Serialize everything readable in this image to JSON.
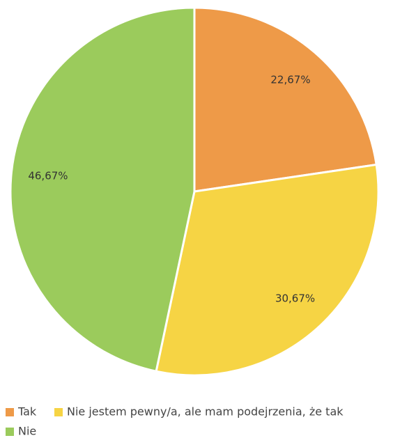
{
  "chart_data": {
    "type": "pie",
    "categories": [
      "Tak",
      "Nie jestem pewny/a, ale mam podejrzenia, że tak",
      "Nie"
    ],
    "values": [
      22.67,
      30.67,
      46.67
    ],
    "value_labels": [
      "22,67%",
      "30,67%",
      "46,67%"
    ],
    "colors": [
      "#ee9a48",
      "#f6d444",
      "#9bcb5c"
    ],
    "legend": "bottom"
  }
}
